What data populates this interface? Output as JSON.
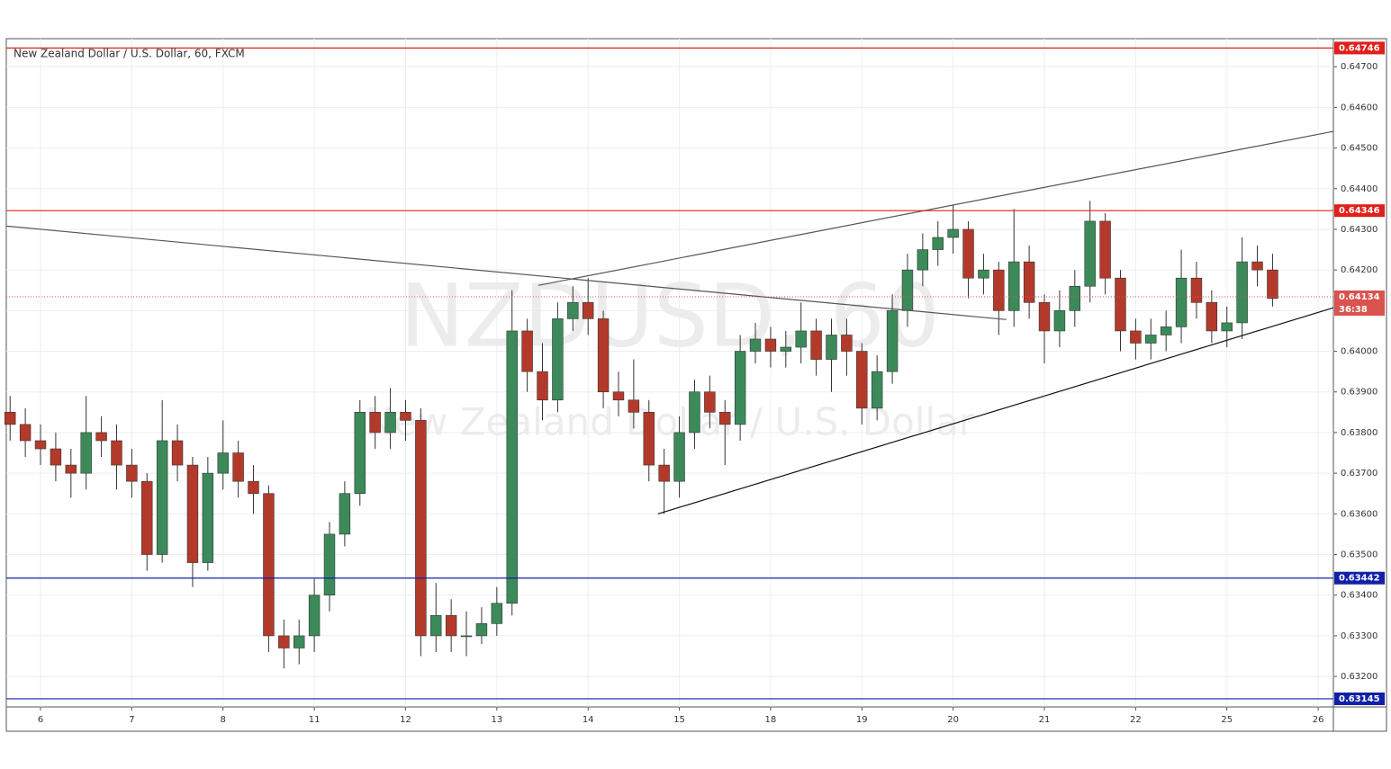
{
  "chart_data": {
    "type": "candlestick",
    "title": "New Zealand Dollar / U.S. Dollar, 60, FXCM",
    "watermark": "NZDUSD, 60",
    "watermark_sub": "New Zealand Dollar / U.S. Dollar",
    "xlim": [
      -9,
      340
    ],
    "xticks": [
      {
        "value": 0,
        "label": "6"
      },
      {
        "value": 24,
        "label": "7"
      },
      {
        "value": 48,
        "label": "8"
      },
      {
        "value": 72,
        "label": "11"
      },
      {
        "value": 96,
        "label": "12"
      },
      {
        "value": 120,
        "label": "13"
      },
      {
        "value": 144,
        "label": "14"
      },
      {
        "value": 168,
        "label": "15"
      },
      {
        "value": 192,
        "label": "18"
      },
      {
        "value": 216,
        "label": "19"
      },
      {
        "value": 240,
        "label": "20"
      },
      {
        "value": 264,
        "label": "21"
      },
      {
        "value": 288,
        "label": "22"
      },
      {
        "value": 312,
        "label": "25"
      },
      {
        "value": 336,
        "label": "26"
      }
    ],
    "ylim": [
      0.63125,
      0.64769
    ],
    "yticks": [
      {
        "value": 0.632,
        "label": "0.63200"
      },
      {
        "value": 0.633,
        "label": "0.63300"
      },
      {
        "value": 0.634,
        "label": "0.63400"
      },
      {
        "value": 0.635,
        "label": "0.63500"
      },
      {
        "value": 0.636,
        "label": "0.63600"
      },
      {
        "value": 0.637,
        "label": "0.63700"
      },
      {
        "value": 0.638,
        "label": "0.63800"
      },
      {
        "value": 0.639,
        "label": "0.63900"
      },
      {
        "value": 0.64,
        "label": "0.64000"
      },
      {
        "value": 0.641,
        "label": "0.64100"
      },
      {
        "value": 0.642,
        "label": "0.64200"
      },
      {
        "value": 0.643,
        "label": "0.64300"
      },
      {
        "value": 0.644,
        "label": "0.64400"
      },
      {
        "value": 0.645,
        "label": "0.64500"
      },
      {
        "value": 0.646,
        "label": "0.64600"
      },
      {
        "value": 0.647,
        "label": "0.64700"
      }
    ],
    "grid": true,
    "up_color": "#3c8a5a",
    "down_color": "#b33a2a",
    "x": [
      -8,
      -4,
      0,
      4,
      8,
      12,
      16,
      20,
      24,
      28,
      32,
      36,
      40,
      44,
      48,
      52,
      56,
      60,
      64,
      68,
      72,
      76,
      80,
      84,
      88,
      92,
      96,
      100,
      104,
      108,
      112,
      116,
      120,
      124,
      128,
      132,
      136,
      140,
      144,
      148,
      152,
      156,
      160,
      164,
      168,
      172,
      176,
      180,
      184,
      188,
      192,
      196,
      200,
      204,
      208,
      212,
      216,
      220,
      224,
      228,
      232,
      236,
      240,
      244,
      248,
      252,
      256,
      260,
      264,
      268,
      272,
      276,
      280,
      284,
      288,
      292,
      296,
      300,
      304,
      308,
      312,
      316,
      320,
      324
    ],
    "open": [
      0.6385,
      0.6382,
      0.6378,
      0.6376,
      0.6372,
      0.637,
      0.638,
      0.6378,
      0.6372,
      0.6368,
      0.635,
      0.6378,
      0.6372,
      0.6348,
      0.637,
      0.6375,
      0.6368,
      0.6365,
      0.633,
      0.6327,
      0.633,
      0.634,
      0.6355,
      0.6365,
      0.6385,
      0.638,
      0.6385,
      0.6383,
      0.633,
      0.6335,
      0.633,
      0.633,
      0.6333,
      0.6338,
      0.6405,
      0.6395,
      0.6388,
      0.6408,
      0.6412,
      0.6408,
      0.639,
      0.6388,
      0.6385,
      0.6372,
      0.6368,
      0.638,
      0.639,
      0.6385,
      0.6382,
      0.64,
      0.6403,
      0.64,
      0.6401,
      0.6405,
      0.6398,
      0.6404,
      0.64,
      0.6386,
      0.6395,
      0.641,
      0.642,
      0.6425,
      0.6428,
      0.643,
      0.6418,
      0.642,
      0.641,
      0.6422,
      0.6412,
      0.6405,
      0.641,
      0.6416,
      0.6432,
      0.6418,
      0.6405,
      0.6402,
      0.6404,
      0.6406,
      0.6418,
      0.6412,
      0.6405,
      0.6407,
      0.6422,
      0.642
    ],
    "high": [
      0.6389,
      0.6386,
      0.6382,
      0.638,
      0.6376,
      0.6389,
      0.6384,
      0.6382,
      0.6376,
      0.637,
      0.6388,
      0.6382,
      0.6374,
      0.6374,
      0.6383,
      0.6378,
      0.6372,
      0.6367,
      0.6334,
      0.6334,
      0.6344,
      0.6358,
      0.6368,
      0.6388,
      0.6389,
      0.6391,
      0.6388,
      0.6386,
      0.6343,
      0.6339,
      0.6336,
      0.6337,
      0.6342,
      0.6415,
      0.6408,
      0.6402,
      0.6412,
      0.6416,
      0.6418,
      0.641,
      0.6395,
      0.6398,
      0.6388,
      0.6376,
      0.6384,
      0.6393,
      0.6394,
      0.6388,
      0.6404,
      0.6407,
      0.6406,
      0.6405,
      0.6412,
      0.6408,
      0.6408,
      0.6408,
      0.6402,
      0.6399,
      0.6414,
      0.6424,
      0.6429,
      0.6432,
      0.6436,
      0.6432,
      0.6424,
      0.6422,
      0.6435,
      0.6426,
      0.6414,
      0.6415,
      0.642,
      0.6437,
      0.6434,
      0.642,
      0.6408,
      0.6408,
      0.641,
      0.6425,
      0.6422,
      0.6415,
      0.6411,
      0.6428,
      0.6426,
      0.6424
    ],
    "low": [
      0.6378,
      0.6374,
      0.6372,
      0.6368,
      0.6364,
      0.6366,
      0.6374,
      0.6366,
      0.6364,
      0.6346,
      0.6348,
      0.6368,
      0.6342,
      0.6346,
      0.6366,
      0.6364,
      0.636,
      0.6326,
      0.6322,
      0.6323,
      0.6326,
      0.6336,
      0.6352,
      0.6362,
      0.6376,
      0.6376,
      0.6378,
      0.6325,
      0.6326,
      0.6326,
      0.6325,
      0.6328,
      0.633,
      0.6335,
      0.639,
      0.6383,
      0.6385,
      0.6405,
      0.6404,
      0.6386,
      0.6384,
      0.6381,
      0.6368,
      0.636,
      0.6364,
      0.6376,
      0.6381,
      0.6372,
      0.6378,
      0.6397,
      0.6396,
      0.6396,
      0.6397,
      0.6394,
      0.639,
      0.6394,
      0.6382,
      0.6383,
      0.6392,
      0.6406,
      0.6416,
      0.6421,
      0.6424,
      0.6413,
      0.6414,
      0.6404,
      0.6406,
      0.6408,
      0.6397,
      0.6401,
      0.6406,
      0.6412,
      0.6414,
      0.64,
      0.6398,
      0.6398,
      0.64,
      0.6402,
      0.6408,
      0.6402,
      0.6401,
      0.6403,
      0.6416,
      0.6411
    ],
    "close": [
      0.6382,
      0.6378,
      0.6376,
      0.6372,
      0.637,
      0.638,
      0.6378,
      0.6372,
      0.6368,
      0.635,
      0.6378,
      0.6372,
      0.6348,
      0.637,
      0.6375,
      0.6368,
      0.6365,
      0.633,
      0.6327,
      0.633,
      0.634,
      0.6355,
      0.6365,
      0.6385,
      0.638,
      0.6385,
      0.6383,
      0.633,
      0.6335,
      0.633,
      0.633,
      0.6333,
      0.6338,
      0.6405,
      0.6395,
      0.6388,
      0.6408,
      0.6412,
      0.6408,
      0.639,
      0.6388,
      0.6385,
      0.6372,
      0.6368,
      0.638,
      0.639,
      0.6385,
      0.6382,
      0.64,
      0.6403,
      0.64,
      0.6401,
      0.6405,
      0.6398,
      0.6404,
      0.64,
      0.6386,
      0.6395,
      0.641,
      0.642,
      0.6425,
      0.6428,
      0.643,
      0.6418,
      0.642,
      0.641,
      0.6422,
      0.6412,
      0.6405,
      0.641,
      0.6416,
      0.6432,
      0.6418,
      0.6405,
      0.6402,
      0.6404,
      0.6406,
      0.6418,
      0.6412,
      0.6405,
      0.6407,
      0.6422,
      0.642,
      0.6413
    ],
    "levels": [
      {
        "value": 0.64746,
        "color": "#e0201b"
      },
      {
        "value": 0.64346,
        "color": "#e0201b"
      },
      {
        "value": 0.63442,
        "color": "#1220a8"
      },
      {
        "value": 0.63145,
        "color": "#1220a8"
      }
    ],
    "last_price": 0.64134,
    "last_color": "#d9534f",
    "countdown": "36:38",
    "trendlines": [
      {
        "x": [
          -9,
          254
        ],
        "y": [
          0.64308,
          0.64078
        ],
        "color": "#555"
      },
      {
        "x": [
          130.9,
          340
        ],
        "y": [
          0.64162,
          0.64541
        ],
        "color": "#555"
      },
      {
        "x": [
          162.4,
          340
        ],
        "y": [
          0.636,
          0.64107
        ],
        "color": "#111"
      }
    ]
  }
}
